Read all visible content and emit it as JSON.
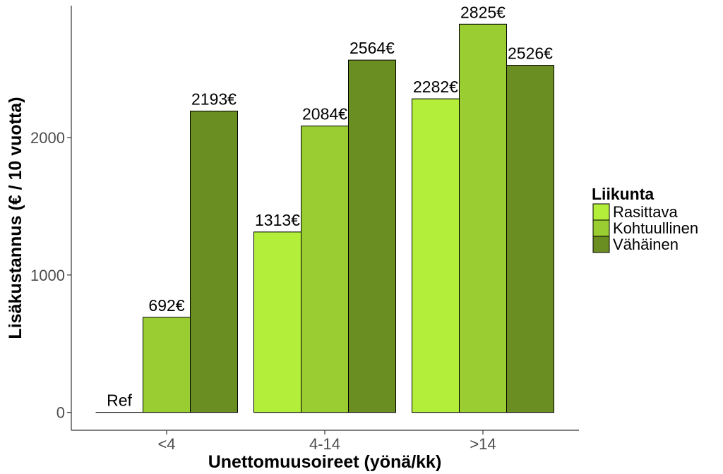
{
  "chart_data": {
    "type": "bar",
    "xlabel": "Unettomuusoireet (yönä/kk)",
    "ylabel": "Lisäkustannus (€ / 10 vuotta)",
    "ylim": [
      -130,
      2960
    ],
    "yticks": [
      0,
      1000,
      2000
    ],
    "categories": [
      "<4",
      "4-14",
      ">14"
    ],
    "legend": {
      "title": "Liikunta",
      "position": "right"
    },
    "grid": false,
    "series": [
      {
        "name": "Rasittava",
        "color": "#b3ee3a",
        "values": [
          0,
          1313,
          2282
        ],
        "labels": [
          "Ref",
          "1313€",
          "2282€"
        ]
      },
      {
        "name": "Kohtuullinen",
        "color": "#9acd32",
        "values": [
          692,
          2084,
          2825
        ],
        "labels": [
          "692€",
          "2084€",
          "2825€"
        ]
      },
      {
        "name": "Vähäinen",
        "color": "#6b8e23",
        "values": [
          2193,
          2564,
          2526
        ],
        "labels": [
          "2193€",
          "2564€",
          "2526€"
        ]
      }
    ]
  }
}
